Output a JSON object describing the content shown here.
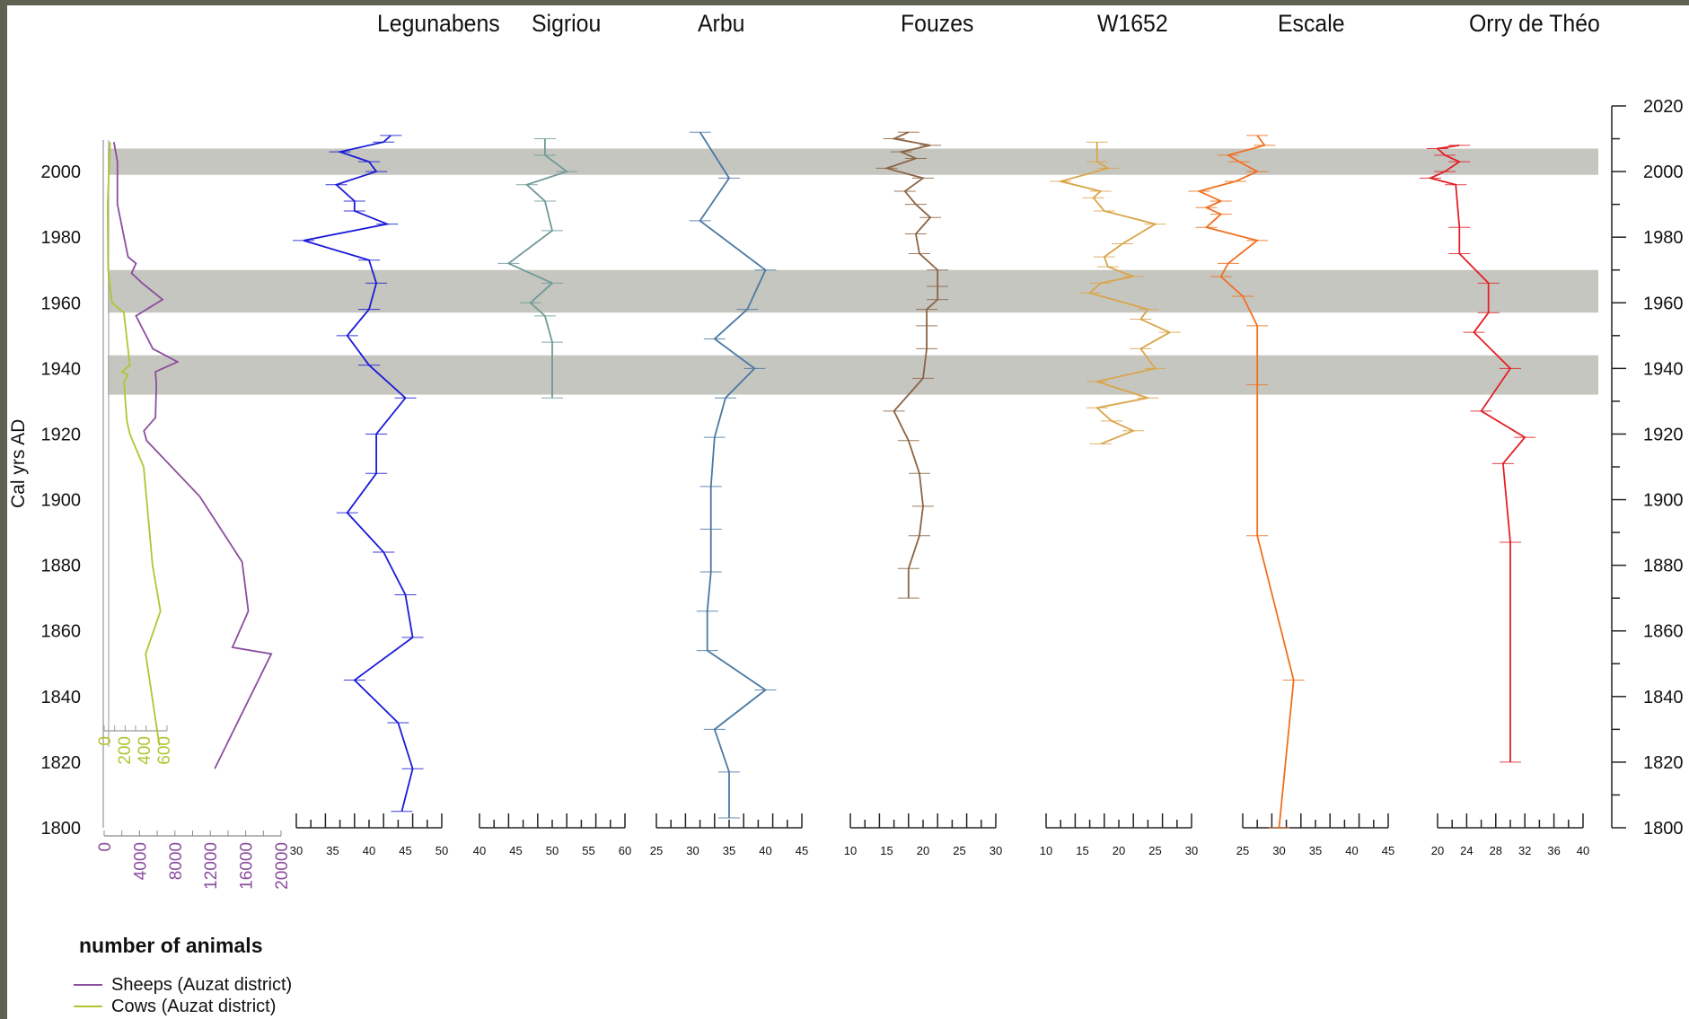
{
  "chart_data": {
    "type": "line",
    "orientation": "vertical-depth",
    "yaxis": {
      "label": "Cal yrs AD",
      "range": [
        1800,
        2020
      ],
      "ticks": [
        1800,
        1820,
        1840,
        1860,
        1880,
        1900,
        1920,
        1940,
        1960,
        1980,
        2000
      ],
      "right_ticks": [
        1800,
        1820,
        1840,
        1860,
        1880,
        1900,
        1920,
        1940,
        1960,
        1980,
        2000,
        2020
      ]
    },
    "shaded_bands": [
      [
        1999,
        2007
      ],
      [
        1957,
        1970
      ],
      [
        1932,
        1944
      ]
    ],
    "animals": {
      "legend_title": "number of animals",
      "series": [
        {
          "name": "Sheeps (Auzat district)",
          "color": "#8b4e9e",
          "xlim": [
            0,
            20000
          ],
          "ticks": [
            "0",
            "4000",
            "8000",
            "12000",
            "16000",
            "20000"
          ],
          "points": [
            [
              1818,
              12500
            ],
            [
              1853,
              18900
            ],
            [
              1855,
              14500
            ],
            [
              1866,
              16300
            ],
            [
              1881,
              15600
            ],
            [
              1901,
              10800
            ],
            [
              1918,
              4800
            ],
            [
              1921,
              4500
            ],
            [
              1925,
              5800
            ],
            [
              1935,
              5900
            ],
            [
              1939,
              5800
            ],
            [
              1942,
              8300
            ],
            [
              1946,
              5500
            ],
            [
              1956,
              3600
            ],
            [
              1961,
              6600
            ],
            [
              1966,
              4300
            ],
            [
              1969,
              3100
            ],
            [
              1972,
              3600
            ],
            [
              1974,
              2700
            ],
            [
              1990,
              1500
            ],
            [
              2003,
              1500
            ],
            [
              2009,
              1100
            ]
          ]
        },
        {
          "name": "Cows (Auzat district)",
          "color": "#b3c431",
          "xlim": [
            0,
            700
          ],
          "ticks": [
            "0",
            "200",
            "400",
            "600"
          ],
          "points": [
            [
              1825,
              560
            ],
            [
              1853,
              420
            ],
            [
              1866,
              570
            ],
            [
              1880,
              490
            ],
            [
              1910,
              400
            ],
            [
              1920,
              260
            ],
            [
              1924,
              230
            ],
            [
              1936,
              200
            ],
            [
              1938,
              240
            ],
            [
              1939,
              180
            ],
            [
              1941,
              260
            ],
            [
              1957,
              200
            ],
            [
              1960,
              80
            ],
            [
              1970,
              40
            ],
            [
              1990,
              35
            ],
            [
              2004,
              55
            ],
            [
              2009,
              60
            ]
          ]
        }
      ]
    },
    "cores": [
      {
        "name": "Legunabens",
        "color": "#1a1ad8",
        "xlim": [
          30,
          50
        ],
        "ticks": [
          "30",
          "35",
          "40",
          "45",
          "50"
        ],
        "points": [
          [
            1805,
            44.5
          ],
          [
            1818,
            46
          ],
          [
            1832,
            44
          ],
          [
            1845,
            38
          ],
          [
            1858,
            46
          ],
          [
            1871,
            45
          ],
          [
            1884,
            42
          ],
          [
            1896,
            37
          ],
          [
            1908,
            41
          ],
          [
            1920,
            41
          ],
          [
            1931,
            45
          ],
          [
            1941,
            40
          ],
          [
            1950,
            37
          ],
          [
            1958,
            40
          ],
          [
            1966,
            41
          ],
          [
            1973,
            40
          ],
          [
            1979,
            31
          ],
          [
            1984,
            42.5
          ],
          [
            1988,
            38
          ],
          [
            1991,
            38
          ],
          [
            1996,
            35.5
          ],
          [
            2000,
            41
          ],
          [
            2003,
            40
          ],
          [
            2006,
            36
          ],
          [
            2009,
            42
          ],
          [
            2011,
            43
          ]
        ]
      },
      {
        "name": "Sigriou",
        "color": "#6f9a98",
        "xlim": [
          40,
          60
        ],
        "ticks": [
          "40",
          "45",
          "50",
          "55",
          "60"
        ],
        "points": [
          [
            1931,
            50
          ],
          [
            1948,
            50
          ],
          [
            1956,
            49
          ],
          [
            1960,
            47
          ],
          [
            1966,
            50
          ],
          [
            1972,
            44
          ],
          [
            1982,
            50
          ],
          [
            1991,
            49
          ],
          [
            1996,
            46.5
          ],
          [
            2000,
            52
          ],
          [
            2005,
            49
          ],
          [
            2010,
            49
          ]
        ]
      },
      {
        "name": "Arbu",
        "color": "#4a78a2",
        "xlim": [
          25,
          45
        ],
        "ticks": [
          "25",
          "30",
          "35",
          "40",
          "45"
        ],
        "points": [
          [
            1803,
            35
          ],
          [
            1817,
            35
          ],
          [
            1830,
            33
          ],
          [
            1842,
            40
          ],
          [
            1854,
            32
          ],
          [
            1866,
            32
          ],
          [
            1878,
            32.5
          ],
          [
            1891,
            32.5
          ],
          [
            1904,
            32.5
          ],
          [
            1919,
            33
          ],
          [
            1931,
            34.5
          ],
          [
            1940,
            38.5
          ],
          [
            1949,
            33
          ],
          [
            1958,
            37.5
          ],
          [
            1970,
            40
          ],
          [
            1985,
            31
          ],
          [
            1998,
            35
          ],
          [
            2012,
            31
          ]
        ]
      },
      {
        "name": "Fouzes",
        "color": "#8b6443",
        "xlim": [
          10,
          30
        ],
        "ticks": [
          "10",
          "15",
          "20",
          "25",
          "30"
        ],
        "points": [
          [
            1870,
            18
          ],
          [
            1879,
            18
          ],
          [
            1889,
            19.5
          ],
          [
            1898,
            20
          ],
          [
            1908,
            19.5
          ],
          [
            1918,
            18
          ],
          [
            1927,
            16
          ],
          [
            1937,
            20
          ],
          [
            1946,
            20.5
          ],
          [
            1953,
            20.5
          ],
          [
            1958,
            20.5
          ],
          [
            1961,
            22
          ],
          [
            1965,
            22
          ],
          [
            1970,
            22
          ],
          [
            1975,
            19.5
          ],
          [
            1981,
            19
          ],
          [
            1986,
            21
          ],
          [
            1990,
            19
          ],
          [
            1994,
            17.5
          ],
          [
            1998,
            20
          ],
          [
            2001,
            15
          ],
          [
            2004,
            19
          ],
          [
            2006,
            17
          ],
          [
            2008,
            21
          ],
          [
            2010,
            16
          ],
          [
            2012,
            18
          ]
        ]
      },
      {
        "name": "W1652",
        "color": "#d9a54a",
        "xlim": [
          10,
          30
        ],
        "ticks": [
          "10",
          "15",
          "20",
          "25",
          "30"
        ],
        "points": [
          [
            1917,
            17.5
          ],
          [
            1921,
            22
          ],
          [
            1924,
            19
          ],
          [
            1928,
            17
          ],
          [
            1931,
            24
          ],
          [
            1936,
            17
          ],
          [
            1940,
            25
          ],
          [
            1946,
            23
          ],
          [
            1951,
            27
          ],
          [
            1955,
            23
          ],
          [
            1958,
            24
          ],
          [
            1963,
            16
          ],
          [
            1966,
            17.5
          ],
          [
            1968,
            22
          ],
          [
            1971,
            18.5
          ],
          [
            1974,
            18
          ],
          [
            1978,
            20.5
          ],
          [
            1984,
            25
          ],
          [
            1988,
            18
          ],
          [
            1992,
            16.5
          ],
          [
            1994,
            17.5
          ],
          [
            1997,
            12
          ],
          [
            2001,
            18.5
          ],
          [
            2003,
            17
          ],
          [
            2009,
            17
          ]
        ]
      },
      {
        "name": "Escale",
        "color": "#f07020",
        "xlim": [
          25,
          45
        ],
        "ticks": [
          "25",
          "30",
          "35",
          "40",
          "45"
        ],
        "points": [
          [
            1800,
            30
          ],
          [
            1845,
            32
          ],
          [
            1889,
            27
          ],
          [
            1935,
            27
          ],
          [
            1953,
            27
          ],
          [
            1962,
            25
          ],
          [
            1968,
            22
          ],
          [
            1972,
            23
          ],
          [
            1979,
            27
          ],
          [
            1983,
            20
          ],
          [
            1987,
            22
          ],
          [
            1989,
            20
          ],
          [
            1991,
            22
          ],
          [
            1994,
            19
          ],
          [
            1997,
            24
          ],
          [
            2000,
            27
          ],
          [
            2003,
            24.5
          ],
          [
            2005,
            23
          ],
          [
            2008,
            28
          ],
          [
            2011,
            27
          ]
        ]
      },
      {
        "name": "Orry de Théo",
        "color": "#e22026",
        "xlim": [
          20,
          40
        ],
        "ticks": [
          "20",
          "24",
          "28",
          "32",
          "36",
          "40"
        ],
        "points": [
          [
            1820,
            30
          ],
          [
            1887,
            30
          ],
          [
            1911,
            29
          ],
          [
            1919,
            32
          ],
          [
            1927,
            26
          ],
          [
            1940,
            30
          ],
          [
            1951,
            25
          ],
          [
            1957,
            27
          ],
          [
            1966,
            27
          ],
          [
            1975,
            23
          ],
          [
            1983,
            23
          ],
          [
            1996,
            22.5
          ],
          [
            1998,
            19
          ],
          [
            2000,
            21
          ],
          [
            2003,
            23
          ],
          [
            2005,
            21
          ],
          [
            2007,
            20
          ],
          [
            2008,
            23
          ]
        ]
      }
    ]
  }
}
